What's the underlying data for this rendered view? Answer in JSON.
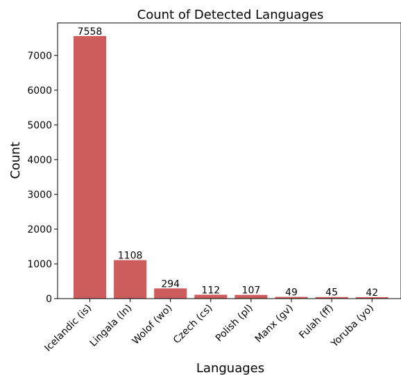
{
  "chart_data": {
    "type": "bar",
    "title": "Count of Detected Languages",
    "xlabel": "Languages",
    "ylabel": "Count",
    "categories": [
      "Icelandic (is)",
      "Lingala (ln)",
      "Wolof (wo)",
      "Czech (cs)",
      "Polish (pl)",
      "Manx (gv)",
      "Fulah (ff)",
      "Yoruba (yo)"
    ],
    "values": [
      7558,
      1108,
      294,
      112,
      107,
      49,
      45,
      42
    ],
    "data_labels": [
      "7558",
      "1108",
      "294",
      "112",
      "107",
      "49",
      "45",
      "42"
    ],
    "yticks": [
      0,
      1000,
      2000,
      3000,
      4000,
      5000,
      6000,
      7000
    ],
    "ylim": [
      0,
      7936
    ],
    "grid": false,
    "bar_color": "#cd5c5c"
  }
}
